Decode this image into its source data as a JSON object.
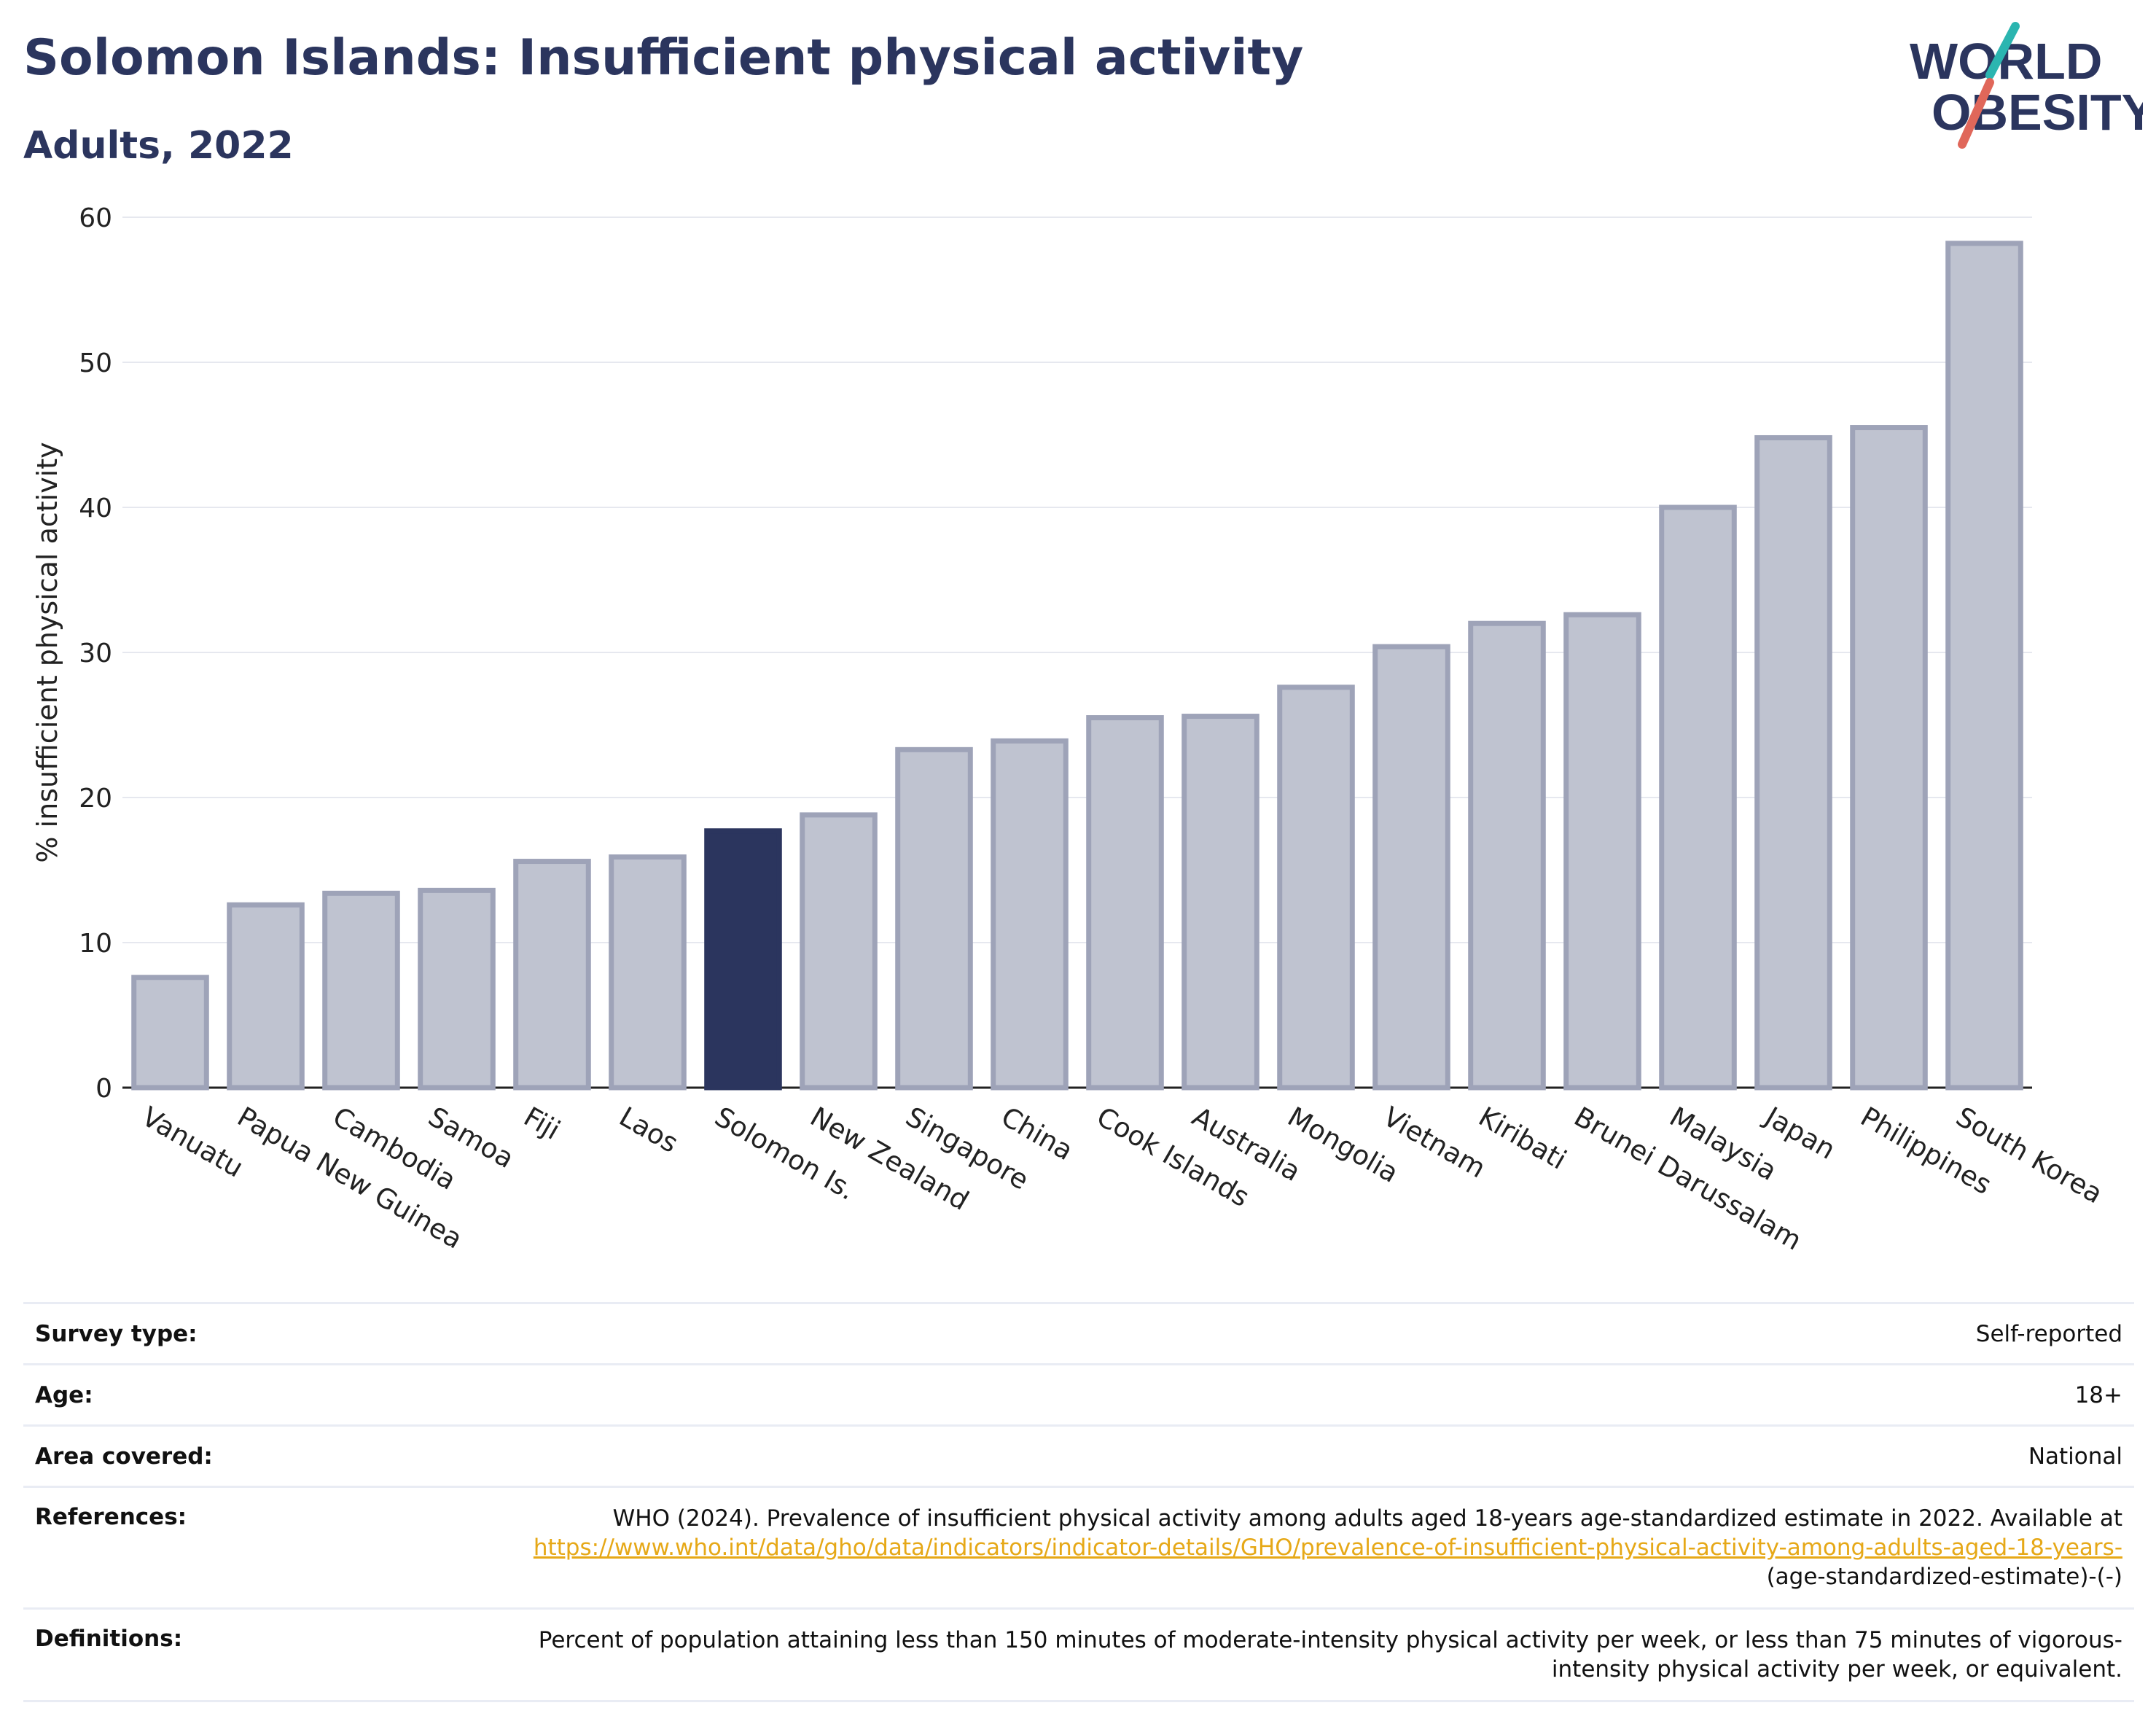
{
  "header": {
    "title": "Solomon Islands: Insufficient physical activity",
    "subtitle": "Adults, 2022",
    "logo_line1": "WORLD",
    "logo_line2": "OBESITY"
  },
  "colors": {
    "title": "#2b355e",
    "bar": "#bfc3d0",
    "bar_outline": "#9ea3b8",
    "highlight": "#2b355e",
    "link": "#e6a817",
    "logo_teal": "#2bb5b0",
    "logo_red": "#e0675a"
  },
  "chart_data": {
    "type": "bar",
    "ylabel": "% insufficient physical activity",
    "ylim": [
      0,
      60
    ],
    "yticks": [
      0,
      10,
      20,
      30,
      40,
      50,
      60
    ],
    "grid": true,
    "highlight": "Solomon Is.",
    "categories": [
      "Vanuatu",
      "Papua New Guinea",
      "Cambodia",
      "Samoa",
      "Fiji",
      "Laos",
      "Solomon Is.",
      "New Zealand",
      "Singapore",
      "China",
      "Cook Islands",
      "Australia",
      "Mongolia",
      "Vietnam",
      "Kiribati",
      "Brunei Darussalam",
      "Malaysia",
      "Japan",
      "Philippines",
      "South Korea"
    ],
    "values": [
      7.6,
      12.6,
      13.4,
      13.6,
      15.6,
      15.9,
      17.7,
      18.8,
      23.3,
      23.9,
      25.5,
      25.6,
      27.6,
      30.4,
      32.0,
      32.6,
      40.0,
      44.8,
      45.5,
      58.2
    ]
  },
  "info": {
    "survey_type_label": "Survey type:",
    "survey_type_value": "Self-reported",
    "age_label": "Age:",
    "age_value": "18+",
    "area_label": "Area covered:",
    "area_value": "National",
    "references_label": "References:",
    "references_text": "WHO (2024). Prevalence of insufficient physical activity among adults aged 18-years age-standardized estimate in 2022. Available at",
    "references_link": "https://www.who.int/data/gho/data/indicators/indicator-details/GHO/prevalence-of-insufficient-physical-activity-among-adults-aged-18-years-",
    "references_suffix": "(age-standardized-estimate)-(-)",
    "definitions_label": "Definitions:",
    "definitions_value": "Percent of population attaining less than 150 minutes of moderate-intensity physical activity per week, or less than 75 minutes of vigorous-intensity physical activity per week, or equivalent."
  }
}
